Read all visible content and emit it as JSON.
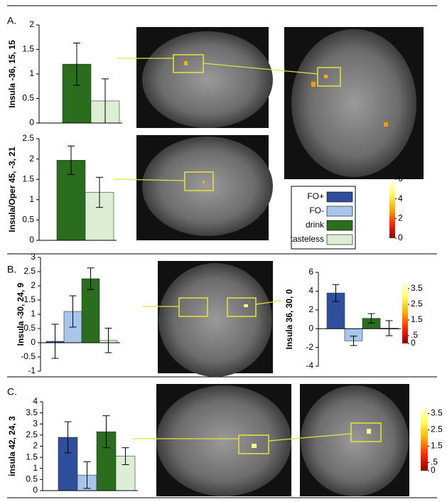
{
  "panels": [
    "A.",
    "B.",
    "C."
  ],
  "legend": [
    {
      "name": "FO+",
      "color": "#2f4f9c"
    },
    {
      "name": "FO-",
      "color": "#a8c6ec"
    },
    {
      "name": "drink",
      "color": "#2b6d1f"
    },
    {
      "name": "tasteless",
      "color": "#dcefd5"
    }
  ],
  "chart_data": [
    {
      "type": "bar",
      "ylabel": "Insula -36, 15, 15",
      "ylim": [
        0,
        2
      ],
      "yticks": [
        0,
        0.5,
        1,
        1.5,
        2
      ],
      "values": [
        1.2,
        0.45
      ],
      "errors": [
        0.43,
        0.45
      ],
      "colors": [
        "#2b6d1f",
        "#dcefd5"
      ]
    },
    {
      "type": "bar",
      "ylabel": "Insula/Oper 45, -3, 21",
      "ylim": [
        0,
        2.5
      ],
      "yticks": [
        0,
        0.5,
        1,
        1.5,
        2,
        2.5
      ],
      "values": [
        1.97,
        1.18
      ],
      "errors": [
        0.35,
        0.37
      ],
      "colors": [
        "#2b6d1f",
        "#dcefd5"
      ]
    },
    {
      "type": "bar",
      "ylabel": "Insula -30, 24, 9",
      "ylim": [
        -1,
        3
      ],
      "yticks": [
        -1,
        -0.5,
        0,
        0.5,
        1,
        1.5,
        2,
        2.5,
        3
      ],
      "values": [
        0.05,
        1.1,
        2.25,
        0.08
      ],
      "errors": [
        0.6,
        0.55,
        0.38,
        0.43
      ],
      "colors": [
        "#2f4f9c",
        "#a8c6ec",
        "#2b6d1f",
        "#dcefd5"
      ]
    },
    {
      "type": "bar",
      "ylabel": "Insula 36, 30, 0",
      "ylim": [
        -4,
        6
      ],
      "yticks": [
        -4,
        -2,
        0,
        2,
        4,
        6
      ],
      "values": [
        3.8,
        -1.3,
        1.1,
        0.05
      ],
      "errors": [
        0.9,
        0.5,
        0.5,
        0.8
      ],
      "colors": [
        "#2f4f9c",
        "#a8c6ec",
        "#2b6d1f",
        "#dcefd5"
      ]
    },
    {
      "type": "bar",
      "ylabel": "insula 42, 24, 3",
      "ylim": [
        0,
        4
      ],
      "yticks": [
        0,
        0.5,
        1,
        1.5,
        2,
        2.5,
        3,
        3.5,
        4
      ],
      "values": [
        2.4,
        0.7,
        2.65,
        1.55
      ],
      "errors": [
        0.7,
        0.6,
        0.72,
        0.38
      ],
      "colors": [
        "#2f4f9c",
        "#a8c6ec",
        "#2b6d1f",
        "#dcefd5"
      ]
    },
    {
      "type": "colorbar",
      "ylim": [
        0,
        6
      ],
      "yticks": [
        0,
        2,
        4,
        6
      ],
      "colors": [
        "#8b0000",
        "#ff2a00",
        "#ffb000",
        "#ffff60",
        "#ffffff"
      ]
    },
    {
      "type": "colorbar",
      "ylim": [
        0,
        4
      ],
      "yticks": [
        0,
        {
          "value": 0.5,
          "label": ".5"
        },
        1.5,
        2.5,
        3.5
      ],
      "colors": [
        "#8b0000",
        "#ff2a00",
        "#ffb000",
        "#ffff60",
        "#ffffff"
      ]
    },
    {
      "type": "colorbar",
      "ylim": [
        0,
        4
      ],
      "yticks": [
        0,
        {
          "value": 0.5,
          "label": ".5"
        },
        1.5,
        2.5,
        3.5
      ],
      "colors": [
        "#8b0000",
        "#ff2a00",
        "#ffb000",
        "#ffff60",
        "#ffffff"
      ]
    }
  ]
}
